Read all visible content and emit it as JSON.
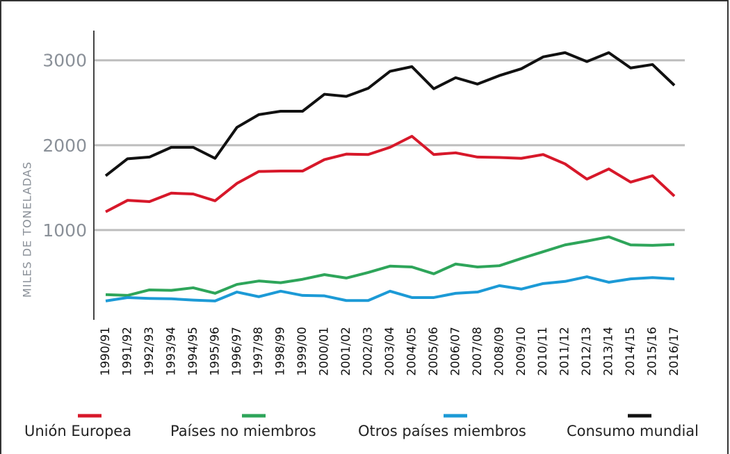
{
  "chart_data": {
    "type": "line",
    "y_label": "MILES DE TONELADAS",
    "categories": [
      "1990/91",
      "1991/92",
      "1992/93",
      "1993/94",
      "1994/95",
      "1995/96",
      "1996/97",
      "1997/98",
      "1998/99",
      "1999/00",
      "2000/01",
      "2001/02",
      "2002/03",
      "2003/04",
      "2004/05",
      "2005/06",
      "2006/07",
      "2007/08",
      "2008/09",
      "2009/10",
      "2010/11",
      "2011/12",
      "2012/13",
      "2013/14",
      "2014/15",
      "2015/16",
      "2016/17"
    ],
    "series": [
      {
        "name": "Unión Europea",
        "color": "#d7182a",
        "values": [
          1215,
          1350,
          1335,
          1435,
          1425,
          1345,
          1550,
          1690,
          1695,
          1695,
          1830,
          1895,
          1890,
          1975,
          2105,
          1890,
          1910,
          1860,
          1855,
          1845,
          1890,
          1780,
          1600,
          1720,
          1565,
          1640,
          1400
        ]
      },
      {
        "name": "Países no miembros",
        "color": "#2ea55a",
        "values": [
          240,
          230,
          295,
          290,
          320,
          255,
          360,
          400,
          380,
          420,
          475,
          435,
          500,
          575,
          565,
          485,
          600,
          565,
          580,
          665,
          745,
          825,
          870,
          920,
          825,
          820,
          830
        ]
      },
      {
        "name": "Otros países miembros",
        "color": "#1c9ad6",
        "values": [
          165,
          205,
          195,
          190,
          175,
          165,
          270,
          215,
          280,
          230,
          225,
          170,
          170,
          280,
          205,
          205,
          255,
          270,
          345,
          305,
          370,
          395,
          450,
          385,
          425,
          440,
          425
        ]
      },
      {
        "name": "Consumo mundial",
        "color": "#111111",
        "values": [
          1640,
          1840,
          1860,
          1975,
          1975,
          1845,
          2210,
          2360,
          2400,
          2400,
          2600,
          2575,
          2670,
          2870,
          2925,
          2665,
          2795,
          2720,
          2820,
          2900,
          3040,
          3090,
          2985,
          3090,
          2910,
          2950,
          2705
        ]
      }
    ],
    "ylim": [
      0,
      3350
    ],
    "yticks": [
      1000,
      2000,
      3000
    ],
    "grid": true
  }
}
